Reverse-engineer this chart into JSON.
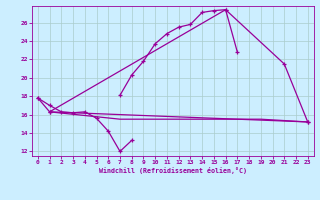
{
  "title": "",
  "xlabel": "Windchill (Refroidissement éolien,°C)",
  "background_color": "#cceeff",
  "line_color": "#990099",
  "grid_color": "#aacccc",
  "xlim": [
    -0.5,
    23.5
  ],
  "ylim": [
    11.5,
    27.8
  ],
  "xticks": [
    0,
    1,
    2,
    3,
    4,
    5,
    6,
    7,
    8,
    9,
    10,
    11,
    12,
    13,
    14,
    15,
    16,
    17,
    18,
    19,
    20,
    21,
    22,
    23
  ],
  "yticks": [
    12,
    14,
    16,
    18,
    20,
    22,
    24,
    26
  ],
  "lines": [
    {
      "x": [
        0,
        1,
        2,
        3,
        4,
        5,
        6,
        7,
        8
      ],
      "y": [
        17.8,
        17.0,
        16.3,
        16.2,
        16.3,
        15.6,
        14.2,
        12.0,
        13.2
      ],
      "marker": true
    },
    {
      "x": [
        7,
        8,
        9,
        10,
        11,
        12,
        13,
        14,
        15,
        16,
        17
      ],
      "y": [
        18.1,
        20.3,
        21.8,
        23.7,
        24.8,
        25.5,
        25.8,
        27.1,
        27.3,
        27.4,
        22.8
      ],
      "marker": true
    },
    {
      "x": [
        0,
        1,
        16,
        21,
        23
      ],
      "y": [
        17.8,
        16.3,
        27.4,
        21.5,
        15.2
      ],
      "marker": true
    },
    {
      "x": [
        1,
        23
      ],
      "y": [
        16.3,
        15.2
      ],
      "marker": true
    },
    {
      "x": [
        1,
        7,
        19,
        23
      ],
      "y": [
        16.3,
        15.5,
        15.5,
        15.2
      ],
      "marker": false
    }
  ]
}
